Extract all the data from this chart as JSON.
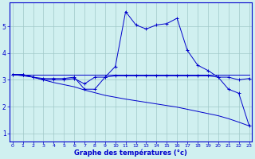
{
  "xlabel": "Graphe des températures (°c)",
  "background_color": "#d0f0f0",
  "grid_color": "#a0c8c8",
  "line_color": "#0000cc",
  "line1_x": [
    0,
    1,
    2,
    3,
    4,
    5,
    6,
    7,
    8,
    9,
    10,
    11,
    12,
    13,
    14,
    15,
    16,
    17,
    18,
    19,
    20,
    21,
    22,
    23
  ],
  "line1_y": [
    3.2,
    3.2,
    3.1,
    3.05,
    3.05,
    3.05,
    3.1,
    2.65,
    2.65,
    3.1,
    3.5,
    5.55,
    5.05,
    4.9,
    5.05,
    5.1,
    5.3,
    4.1,
    3.55,
    3.35,
    3.1,
    2.65,
    2.5,
    1.3
  ],
  "line2_x": [
    0,
    1,
    2,
    3,
    4,
    5,
    6,
    7,
    8,
    9,
    10,
    11,
    12,
    13,
    14,
    15,
    16,
    17,
    18,
    19,
    20,
    21,
    22,
    23
  ],
  "line2_y": [
    3.2,
    3.2,
    3.2,
    3.2,
    3.2,
    3.2,
    3.2,
    3.2,
    3.2,
    3.2,
    3.2,
    3.2,
    3.2,
    3.2,
    3.2,
    3.2,
    3.2,
    3.2,
    3.2,
    3.2,
    3.2,
    3.2,
    3.2,
    3.2
  ],
  "line3_x": [
    0,
    1,
    2,
    3,
    4,
    5,
    6,
    7,
    8,
    9,
    10,
    11,
    12,
    13,
    14,
    15,
    16,
    17,
    18,
    19,
    20,
    21,
    22,
    23
  ],
  "line3_y": [
    3.2,
    3.2,
    3.1,
    3.0,
    3.0,
    3.0,
    3.05,
    2.85,
    3.1,
    3.1,
    3.15,
    3.15,
    3.15,
    3.15,
    3.15,
    3.15,
    3.15,
    3.15,
    3.15,
    3.15,
    3.1,
    3.1,
    3.0,
    3.05
  ],
  "line4_x": [
    0,
    1,
    2,
    3,
    4,
    5,
    6,
    7,
    8,
    9,
    10,
    11,
    12,
    13,
    14,
    15,
    16,
    17,
    18,
    19,
    20,
    21,
    22,
    23
  ],
  "line4_y": [
    3.2,
    3.15,
    3.1,
    3.0,
    2.9,
    2.82,
    2.74,
    2.62,
    2.52,
    2.42,
    2.35,
    2.28,
    2.22,
    2.16,
    2.1,
    2.04,
    1.98,
    1.9,
    1.82,
    1.74,
    1.66,
    1.55,
    1.42,
    1.28
  ],
  "xlim": [
    -0.3,
    23.3
  ],
  "ylim": [
    0.7,
    5.9
  ],
  "yticks": [
    1,
    2,
    3,
    4,
    5
  ],
  "xticks": [
    0,
    1,
    2,
    3,
    4,
    5,
    6,
    7,
    8,
    9,
    10,
    11,
    12,
    13,
    14,
    15,
    16,
    17,
    18,
    19,
    20,
    21,
    22,
    23
  ]
}
